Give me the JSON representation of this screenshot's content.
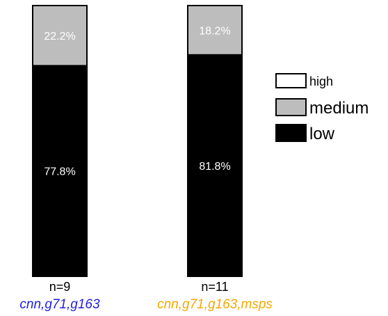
{
  "chart_data": {
    "type": "bar",
    "stacked": true,
    "percent": true,
    "categories": [
      {
        "n_label": "n=9",
        "group_label": "cnn,g71,g163",
        "label_color": "#1f1fe0"
      },
      {
        "n_label": "n=11",
        "group_label": "cnn,g71,g163,msps",
        "label_color": "#f5a800"
      }
    ],
    "series": [
      {
        "name": "low",
        "color": "#000000",
        "label_color": "#ffffff",
        "values": [
          77.8,
          81.8
        ],
        "data_labels": [
          "77.8%",
          "81.8%"
        ]
      },
      {
        "name": "medium",
        "color": "#bdbdbd",
        "label_color": "#ffffff",
        "values": [
          22.2,
          18.2
        ],
        "data_labels": [
          "22.2%",
          "18.2%"
        ]
      },
      {
        "name": "high",
        "color": "#ffffff",
        "label_color": "#000000",
        "values": [
          0,
          0
        ],
        "data_labels": [
          "",
          ""
        ]
      }
    ],
    "ylim": [
      0,
      100
    ],
    "legend": {
      "placement": "right",
      "order": [
        "high",
        "medium",
        "low"
      ]
    },
    "grid": false
  }
}
